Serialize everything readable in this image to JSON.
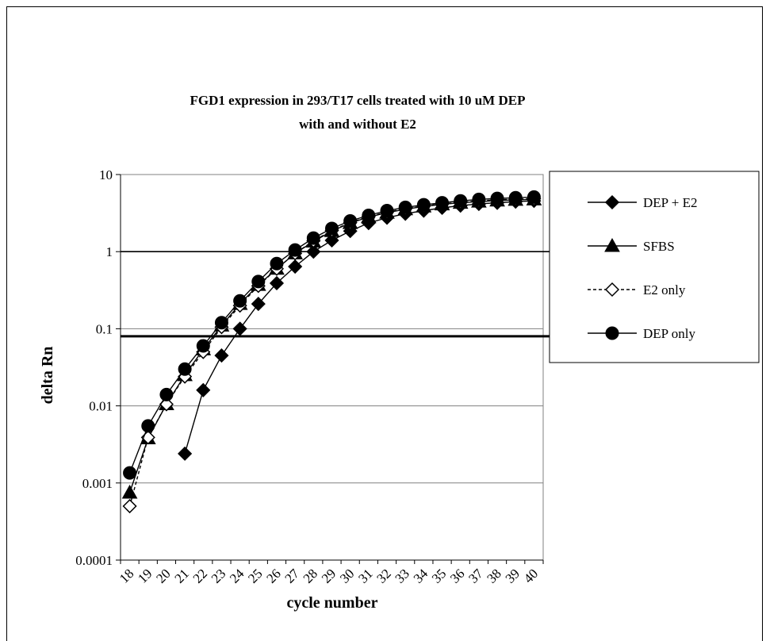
{
  "chart_data": {
    "type": "line",
    "title": "FGD1 expression in 293/T17 cells treated with 10 uM DEP",
    "subtitle": "with and without E2",
    "xlabel": "cycle number",
    "ylabel": "delta Rn",
    "yscale": "log",
    "ylim": [
      0.0001,
      10
    ],
    "y_ticks": [
      "0.0001",
      "0.001",
      "0.01",
      "0.1",
      "1",
      "10"
    ],
    "x": [
      18,
      19,
      20,
      21,
      22,
      23,
      24,
      25,
      26,
      27,
      28,
      29,
      30,
      31,
      32,
      33,
      34,
      35,
      36,
      37,
      38,
      39,
      40
    ],
    "grid": "horizontal",
    "legend_position": "right",
    "thresholds": [
      1,
      0.08
    ],
    "series": [
      {
        "name": "DEP + E2",
        "marker": "diamond-filled",
        "dash": "solid",
        "values": [
          null,
          null,
          null,
          0.0024,
          0.016,
          0.045,
          0.1,
          0.21,
          0.39,
          0.64,
          1.0,
          1.4,
          1.85,
          2.35,
          2.75,
          3.1,
          3.4,
          3.7,
          3.95,
          4.15,
          4.3,
          4.45,
          4.55
        ]
      },
      {
        "name": "SFBS",
        "marker": "triangle-filled",
        "dash": "solid",
        "values": [
          0.00075,
          0.0038,
          0.0105,
          0.025,
          0.054,
          0.11,
          0.21,
          0.37,
          0.6,
          0.95,
          1.35,
          1.85,
          2.35,
          2.8,
          3.2,
          3.55,
          3.85,
          4.1,
          4.3,
          4.45,
          4.6,
          4.7,
          4.75
        ]
      },
      {
        "name": "E2 only",
        "marker": "diamond-open",
        "dash": "dashed",
        "values": [
          0.0005,
          0.0039,
          0.0105,
          0.024,
          0.05,
          0.105,
          0.2,
          0.36,
          0.6,
          0.95,
          1.38,
          1.88,
          2.38,
          2.85,
          3.25,
          3.6,
          3.9,
          4.15,
          4.35,
          4.55,
          4.7,
          4.8,
          4.85
        ]
      },
      {
        "name": "DEP only",
        "marker": "circle-filled",
        "dash": "solid",
        "values": [
          0.00135,
          0.0055,
          0.014,
          0.03,
          0.06,
          0.12,
          0.23,
          0.41,
          0.7,
          1.05,
          1.5,
          2.0,
          2.5,
          2.95,
          3.4,
          3.75,
          4.05,
          4.3,
          4.55,
          4.75,
          4.9,
          5.0,
          5.1
        ]
      }
    ]
  },
  "colors": {
    "line": "#000000",
    "grid": "#808080",
    "background": "#ffffff"
  }
}
